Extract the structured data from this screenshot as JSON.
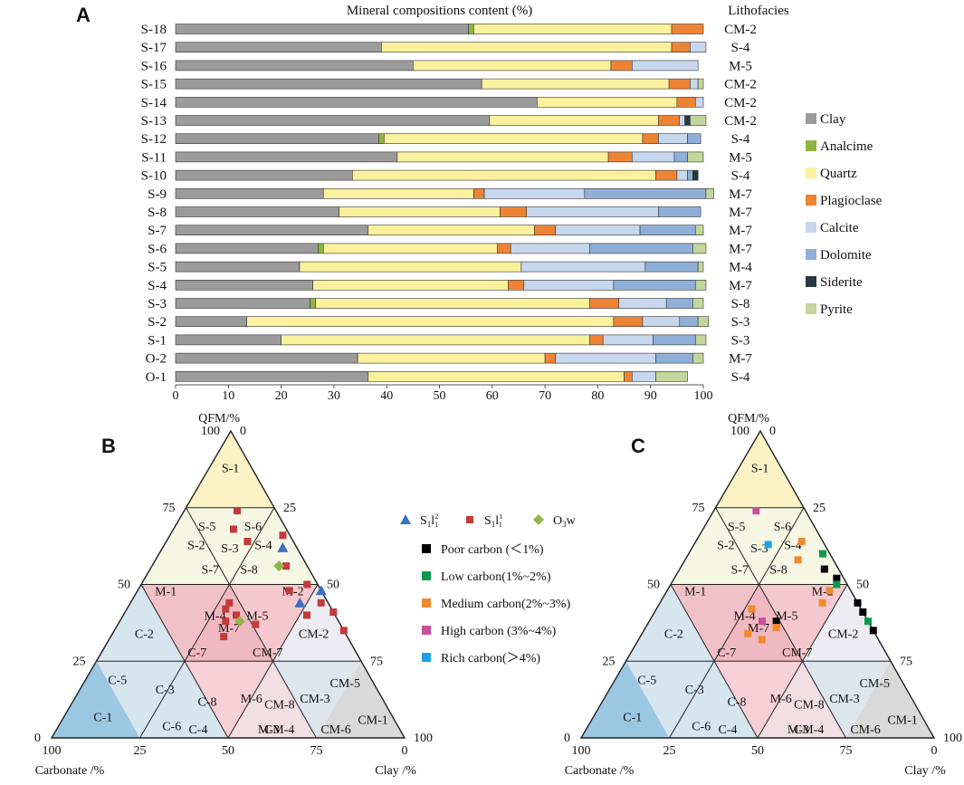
{
  "panel_labels": [
    "A",
    "B",
    "C"
  ],
  "chart_data": [
    {
      "type": "bar",
      "stacked": true,
      "orientation": "horizontal",
      "title": "Mineral compositions content (%)",
      "lithofacies_header": "Lithofacies",
      "xlim": [
        0,
        100
      ],
      "xticks": [
        "0",
        "10",
        "20",
        "30",
        "40",
        "50",
        "60",
        "70",
        "80",
        "90",
        "100"
      ],
      "categories": [
        "S-18",
        "S-17",
        "S-16",
        "S-15",
        "S-14",
        "S-13",
        "S-12",
        "S-11",
        "S-10",
        "S-9",
        "S-8",
        "S-7",
        "S-6",
        "S-5",
        "S-4",
        "S-3",
        "S-2",
        "S-1",
        "O-2",
        "O-1"
      ],
      "lithofacies": [
        "CM-2",
        "S-4",
        "M-5",
        "CM-2",
        "CM-2",
        "CM-2",
        "S-4",
        "M-5",
        "S-4",
        "M-7",
        "M-7",
        "M-7",
        "M-7",
        "M-4",
        "M-7",
        "S-8",
        "S-3",
        "S-3",
        "M-7",
        "S-4"
      ],
      "series": [
        {
          "name": "Clay",
          "color": "#9b9b9b",
          "values": [
            55.5,
            39,
            45,
            58,
            68.5,
            59.5,
            38.5,
            42,
            33.5,
            28,
            31,
            36.5,
            27,
            23.5,
            26,
            25.5,
            13.5,
            20,
            34.5,
            36.5
          ]
        },
        {
          "name": "Analcime",
          "color": "#8cb73e",
          "values": [
            1,
            0,
            0,
            0,
            0,
            0,
            1,
            0,
            0,
            0,
            0,
            0,
            1,
            0,
            0,
            1,
            0,
            0,
            0,
            0
          ]
        },
        {
          "name": "Quartz",
          "color": "#fbf19d",
          "values": [
            37.5,
            55,
            37.5,
            35.5,
            26.5,
            32,
            49,
            40,
            57.5,
            28.5,
            30.5,
            31.5,
            33,
            42,
            37,
            52,
            69.5,
            58.5,
            35.5,
            48.5
          ]
        },
        {
          "name": "Plagioclase",
          "color": "#ee8433",
          "values": [
            6,
            3.5,
            4,
            4,
            3.5,
            4,
            3,
            4.5,
            4,
            2,
            5,
            4,
            2.5,
            0,
            3,
            5.5,
            5.5,
            2.5,
            2,
            1.5
          ]
        },
        {
          "name": "Calcite",
          "color": "#c6d7ee",
          "values": [
            0,
            3,
            12.5,
            1.5,
            1.5,
            1,
            5.5,
            8,
            2,
            19,
            25,
            16,
            15,
            23.5,
            17,
            9,
            7,
            9.5,
            19,
            4.5
          ]
        },
        {
          "name": "Dolomite",
          "color": "#8fafd6",
          "values": [
            0,
            0,
            0,
            0,
            0,
            0,
            2.5,
            2.5,
            1,
            23,
            8,
            10.5,
            19.5,
            10,
            15.5,
            5,
            3.5,
            8,
            7,
            0
          ]
        },
        {
          "name": "Siderite",
          "color": "#26393f",
          "values": [
            0,
            0,
            0,
            0,
            0,
            1,
            0,
            0,
            1,
            0,
            0,
            0,
            0,
            0,
            0,
            0,
            0,
            0,
            0,
            0
          ]
        },
        {
          "name": "Pyrite",
          "color": "#c3d69b",
          "values": [
            0,
            0,
            0,
            1,
            0,
            3,
            0,
            3,
            0,
            1.5,
            0,
            1.5,
            2.5,
            1,
            2,
            2,
            2,
            2,
            2,
            6
          ]
        }
      ],
      "legend_position": "right"
    },
    {
      "type": "scatter",
      "subtype": "ternary",
      "axes": {
        "top": "QFM/%",
        "left": "Carbonate /%",
        "right": "Clay /%"
      },
      "ticks": {
        "left_edge": [
          "100",
          "75",
          "50",
          "25",
          "0"
        ],
        "right_edge": [
          "0",
          "25",
          "50",
          "75",
          "100"
        ],
        "bottom_edge": [
          "0",
          "75",
          "50",
          "25",
          "100"
        ]
      },
      "fields": [
        "S-1",
        "S-5",
        "S-6",
        "S-2",
        "S-3",
        "S-4",
        "S-7",
        "S-8",
        "M-1",
        "M-2",
        "M-4",
        "M-5",
        "M-7",
        "C-2",
        "C-7",
        "CM-7",
        "CM-2",
        "C-5",
        "C-3",
        "C-8",
        "M-6",
        "CM-8",
        "CM-3",
        "CM-5",
        "C-1",
        "C-6",
        "C-4",
        "M-3",
        "CM-4",
        "CM-6",
        "CM-1"
      ],
      "legend": [
        {
          "label_main": "S",
          "label_sub": "1",
          "label_suffix": "l",
          "label_sup2": "2",
          "label_sub2": "1",
          "shape": "triangle",
          "color": "#3d6fc5"
        },
        {
          "label_main": "S",
          "label_sub": "1",
          "label_suffix": "l",
          "label_sup2": "1",
          "label_sub2": "1",
          "shape": "square",
          "color": "#c43a3a"
        },
        {
          "label_main": "O",
          "label_sub": "3",
          "label_suffix": "w",
          "shape": "diamond",
          "color": "#93b44a"
        }
      ],
      "series": [
        {
          "name": "S1l1-2",
          "points": [
            {
              "qfm": 62,
              "carb": 4,
              "clay": 34
            },
            {
              "qfm": 48,
              "carb": 0,
              "clay": 52
            },
            {
              "qfm": 44,
              "carb": 8,
              "clay": 48
            }
          ]
        },
        {
          "name": "S1l1-1",
          "points": [
            {
              "qfm": 74,
              "carb": 11,
              "clay": 15
            },
            {
              "qfm": 68,
              "carb": 15,
              "clay": 17
            },
            {
              "qfm": 64,
              "carb": 13,
              "clay": 23
            },
            {
              "qfm": 66,
              "carb": 2,
              "clay": 32
            },
            {
              "qfm": 56,
              "carb": 6,
              "clay": 38
            },
            {
              "qfm": 50,
              "carb": 3,
              "clay": 47
            },
            {
              "qfm": 48,
              "carb": 9,
              "clay": 43
            },
            {
              "qfm": 44,
              "carb": 28,
              "clay": 28
            },
            {
              "qfm": 42,
              "carb": 30,
              "clay": 28
            },
            {
              "qfm": 40,
              "carb": 28,
              "clay": 32
            },
            {
              "qfm": 38,
              "carb": 32,
              "clay": 30
            },
            {
              "qfm": 37,
              "carb": 24,
              "clay": 39
            },
            {
              "qfm": 33,
              "carb": 35,
              "clay": 32
            },
            {
              "qfm": 44,
              "carb": 2,
              "clay": 54
            },
            {
              "qfm": 41,
              "carb": 0,
              "clay": 59
            },
            {
              "qfm": 35,
              "carb": 0,
              "clay": 65
            },
            {
              "qfm": 40,
              "carb": 8,
              "clay": 52
            }
          ]
        },
        {
          "name": "O3w",
          "points": [
            {
              "qfm": 56,
              "carb": 8,
              "clay": 36
            },
            {
              "qfm": 38,
              "carb": 28,
              "clay": 34
            }
          ]
        }
      ]
    },
    {
      "type": "scatter",
      "subtype": "ternary",
      "axes": {
        "top": "QFM/%",
        "left": "Carbonate /%",
        "right": "Clay /%"
      },
      "ticks": {
        "left_edge": [
          "100",
          "75",
          "50",
          "25",
          "0"
        ],
        "right_edge": [
          "0",
          "25",
          "50",
          "75",
          "100"
        ],
        "bottom_edge": [
          "0",
          "75",
          "50",
          "25",
          "100"
        ]
      },
      "fields": [
        "S-1",
        "S-5",
        "S-6",
        "S-2",
        "S-3",
        "S-4",
        "S-7",
        "S-8",
        "M-1",
        "M-2",
        "M-4",
        "M-5",
        "M-7",
        "C-2",
        "C-7",
        "CM-7",
        "CM-2",
        "C-5",
        "C-3",
        "C-8",
        "M-6",
        "CM-8",
        "CM-3",
        "CM-5",
        "C-1",
        "C-6",
        "C-4",
        "M-3",
        "CM-4",
        "CM-6",
        "CM-1"
      ],
      "legend": [
        {
          "label": "Poor carbon (＜1%)",
          "color": "#000000"
        },
        {
          "label": "Low carbon(1%~2%)",
          "color": "#0b9a4b"
        },
        {
          "label": "Medium carbon(2%~3%)",
          "color": "#f08a2e"
        },
        {
          "label": "High carbon (3%~4%)",
          "color": "#c84f9e"
        },
        {
          "label": "Rich carbon(＞4%)",
          "color": "#1ea1e0"
        }
      ],
      "series": [
        {
          "name": "Poor carbon",
          "points": [
            {
              "qfm": 55,
              "carb": 4,
              "clay": 41
            },
            {
              "qfm": 52,
              "carb": 2,
              "clay": 46
            },
            {
              "qfm": 44,
              "carb": 0,
              "clay": 56
            },
            {
              "qfm": 41,
              "carb": 0,
              "clay": 59
            },
            {
              "qfm": 35,
              "carb": 0,
              "clay": 65
            },
            {
              "qfm": 38,
              "carb": 26,
              "clay": 36
            }
          ]
        },
        {
          "name": "Low carbon",
          "points": [
            {
              "qfm": 60,
              "carb": 2,
              "clay": 38
            },
            {
              "qfm": 50,
              "carb": 3,
              "clay": 47
            },
            {
              "qfm": 38,
              "carb": 0,
              "clay": 62
            }
          ]
        },
        {
          "name": "Medium carbon",
          "points": [
            {
              "qfm": 64,
              "carb": 6,
              "clay": 30
            },
            {
              "qfm": 58,
              "carb": 10,
              "clay": 32
            },
            {
              "qfm": 48,
              "carb": 6,
              "clay": 46
            },
            {
              "qfm": 44,
              "carb": 10,
              "clay": 46
            },
            {
              "qfm": 42,
              "carb": 31,
              "clay": 27
            },
            {
              "qfm": 36,
              "carb": 27,
              "clay": 37
            },
            {
              "qfm": 34,
              "carb": 36,
              "clay": 30
            },
            {
              "qfm": 32,
              "carb": 33,
              "clay": 35
            }
          ]
        },
        {
          "name": "High carbon",
          "points": [
            {
              "qfm": 74,
              "carb": 14,
              "clay": 12
            },
            {
              "qfm": 38,
              "carb": 30,
              "clay": 32
            }
          ]
        },
        {
          "name": "Rich carbon",
          "points": [
            {
              "qfm": 63,
              "carb": 16,
              "clay": 21
            }
          ]
        }
      ]
    }
  ]
}
